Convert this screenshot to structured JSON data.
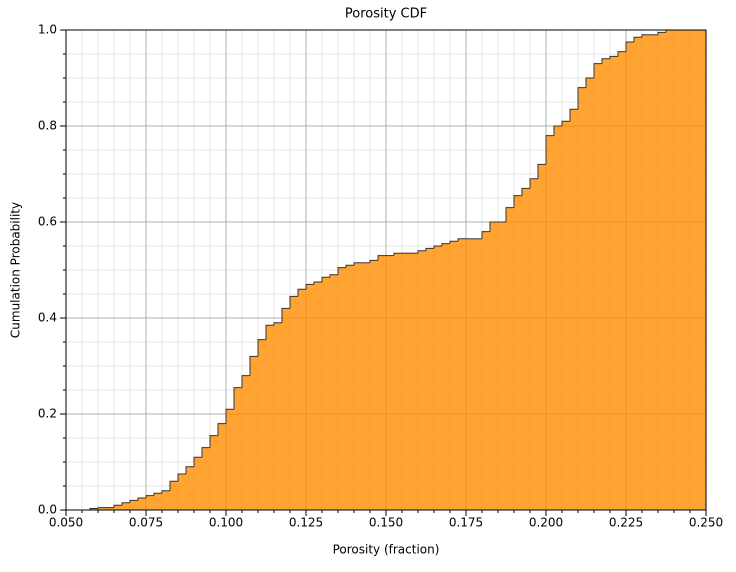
{
  "chart_data": {
    "type": "cumulative_histogram",
    "title": "Porosity CDF",
    "x_label": "Porosity (fraction)",
    "y_label": "Cumulation Probability",
    "color": "#ff8c00",
    "edge_color": "#333333",
    "grid": true,
    "minor_grid": true,
    "bins": [
      0.05,
      0.0525,
      0.055,
      0.0575,
      0.06,
      0.0625,
      0.065,
      0.0675,
      0.07,
      0.0725,
      0.075,
      0.0775,
      0.08,
      0.0825,
      0.085,
      0.0875,
      0.09,
      0.0925,
      0.095,
      0.0975,
      0.1,
      0.1025,
      0.105,
      0.1075,
      0.11,
      0.1125,
      0.115,
      0.1175,
      0.12,
      0.1225,
      0.125,
      0.1275,
      0.13,
      0.1325,
      0.135,
      0.1375,
      0.14,
      0.1425,
      0.145,
      0.1475,
      0.15,
      0.1525,
      0.155,
      0.1575,
      0.16,
      0.1625,
      0.165,
      0.1675,
      0.17,
      0.1725,
      0.175,
      0.1775,
      0.18,
      0.1825,
      0.185,
      0.1875,
      0.19,
      0.1925,
      0.195,
      0.1975,
      0.2,
      0.2025,
      0.205,
      0.2075,
      0.21,
      0.2125,
      0.215,
      0.2175,
      0.22,
      0.2225,
      0.225,
      0.2275,
      0.23,
      0.2325,
      0.235,
      0.2375,
      0.24,
      0.2425,
      0.245,
      0.2475,
      0.25
    ],
    "values": [
      0,
      0,
      0,
      0.003,
      0.005,
      0.005,
      0.01,
      0.015,
      0.02,
      0.025,
      0.03,
      0.035,
      0.04,
      0.06,
      0.075,
      0.09,
      0.11,
      0.13,
      0.155,
      0.18,
      0.21,
      0.255,
      0.28,
      0.32,
      0.355,
      0.385,
      0.39,
      0.42,
      0.445,
      0.46,
      0.47,
      0.475,
      0.485,
      0.49,
      0.505,
      0.51,
      0.515,
      0.515,
      0.52,
      0.53,
      0.53,
      0.535,
      0.535,
      0.535,
      0.54,
      0.545,
      0.55,
      0.555,
      0.56,
      0.565,
      0.565,
      0.565,
      0.58,
      0.6,
      0.6,
      0.63,
      0.655,
      0.67,
      0.69,
      0.72,
      0.78,
      0.8,
      0.81,
      0.835,
      0.88,
      0.9,
      0.93,
      0.94,
      0.945,
      0.955,
      0.975,
      0.985,
      0.99,
      0.99,
      0.995,
      1,
      1,
      1,
      1,
      1
    ],
    "xlim": [
      0.05,
      0.25
    ],
    "xticks": [
      {
        "value": 0.05,
        "label": "0.050"
      },
      {
        "value": 0.075,
        "label": "0.075"
      },
      {
        "value": 0.1,
        "label": "0.100"
      },
      {
        "value": 0.125,
        "label": "0.125"
      },
      {
        "value": 0.15,
        "label": "0.150"
      },
      {
        "value": 0.175,
        "label": "0.175"
      },
      {
        "value": 0.2,
        "label": "0.200"
      },
      {
        "value": 0.225,
        "label": "0.225"
      },
      {
        "value": 0.25,
        "label": "0.250"
      }
    ],
    "ylim": [
      0,
      1
    ],
    "yticks": [
      {
        "value": 0,
        "label": "0.0"
      },
      0.2,
      0.4,
      0.6,
      0.8,
      {
        "value": 1,
        "label": "1.0"
      }
    ]
  }
}
